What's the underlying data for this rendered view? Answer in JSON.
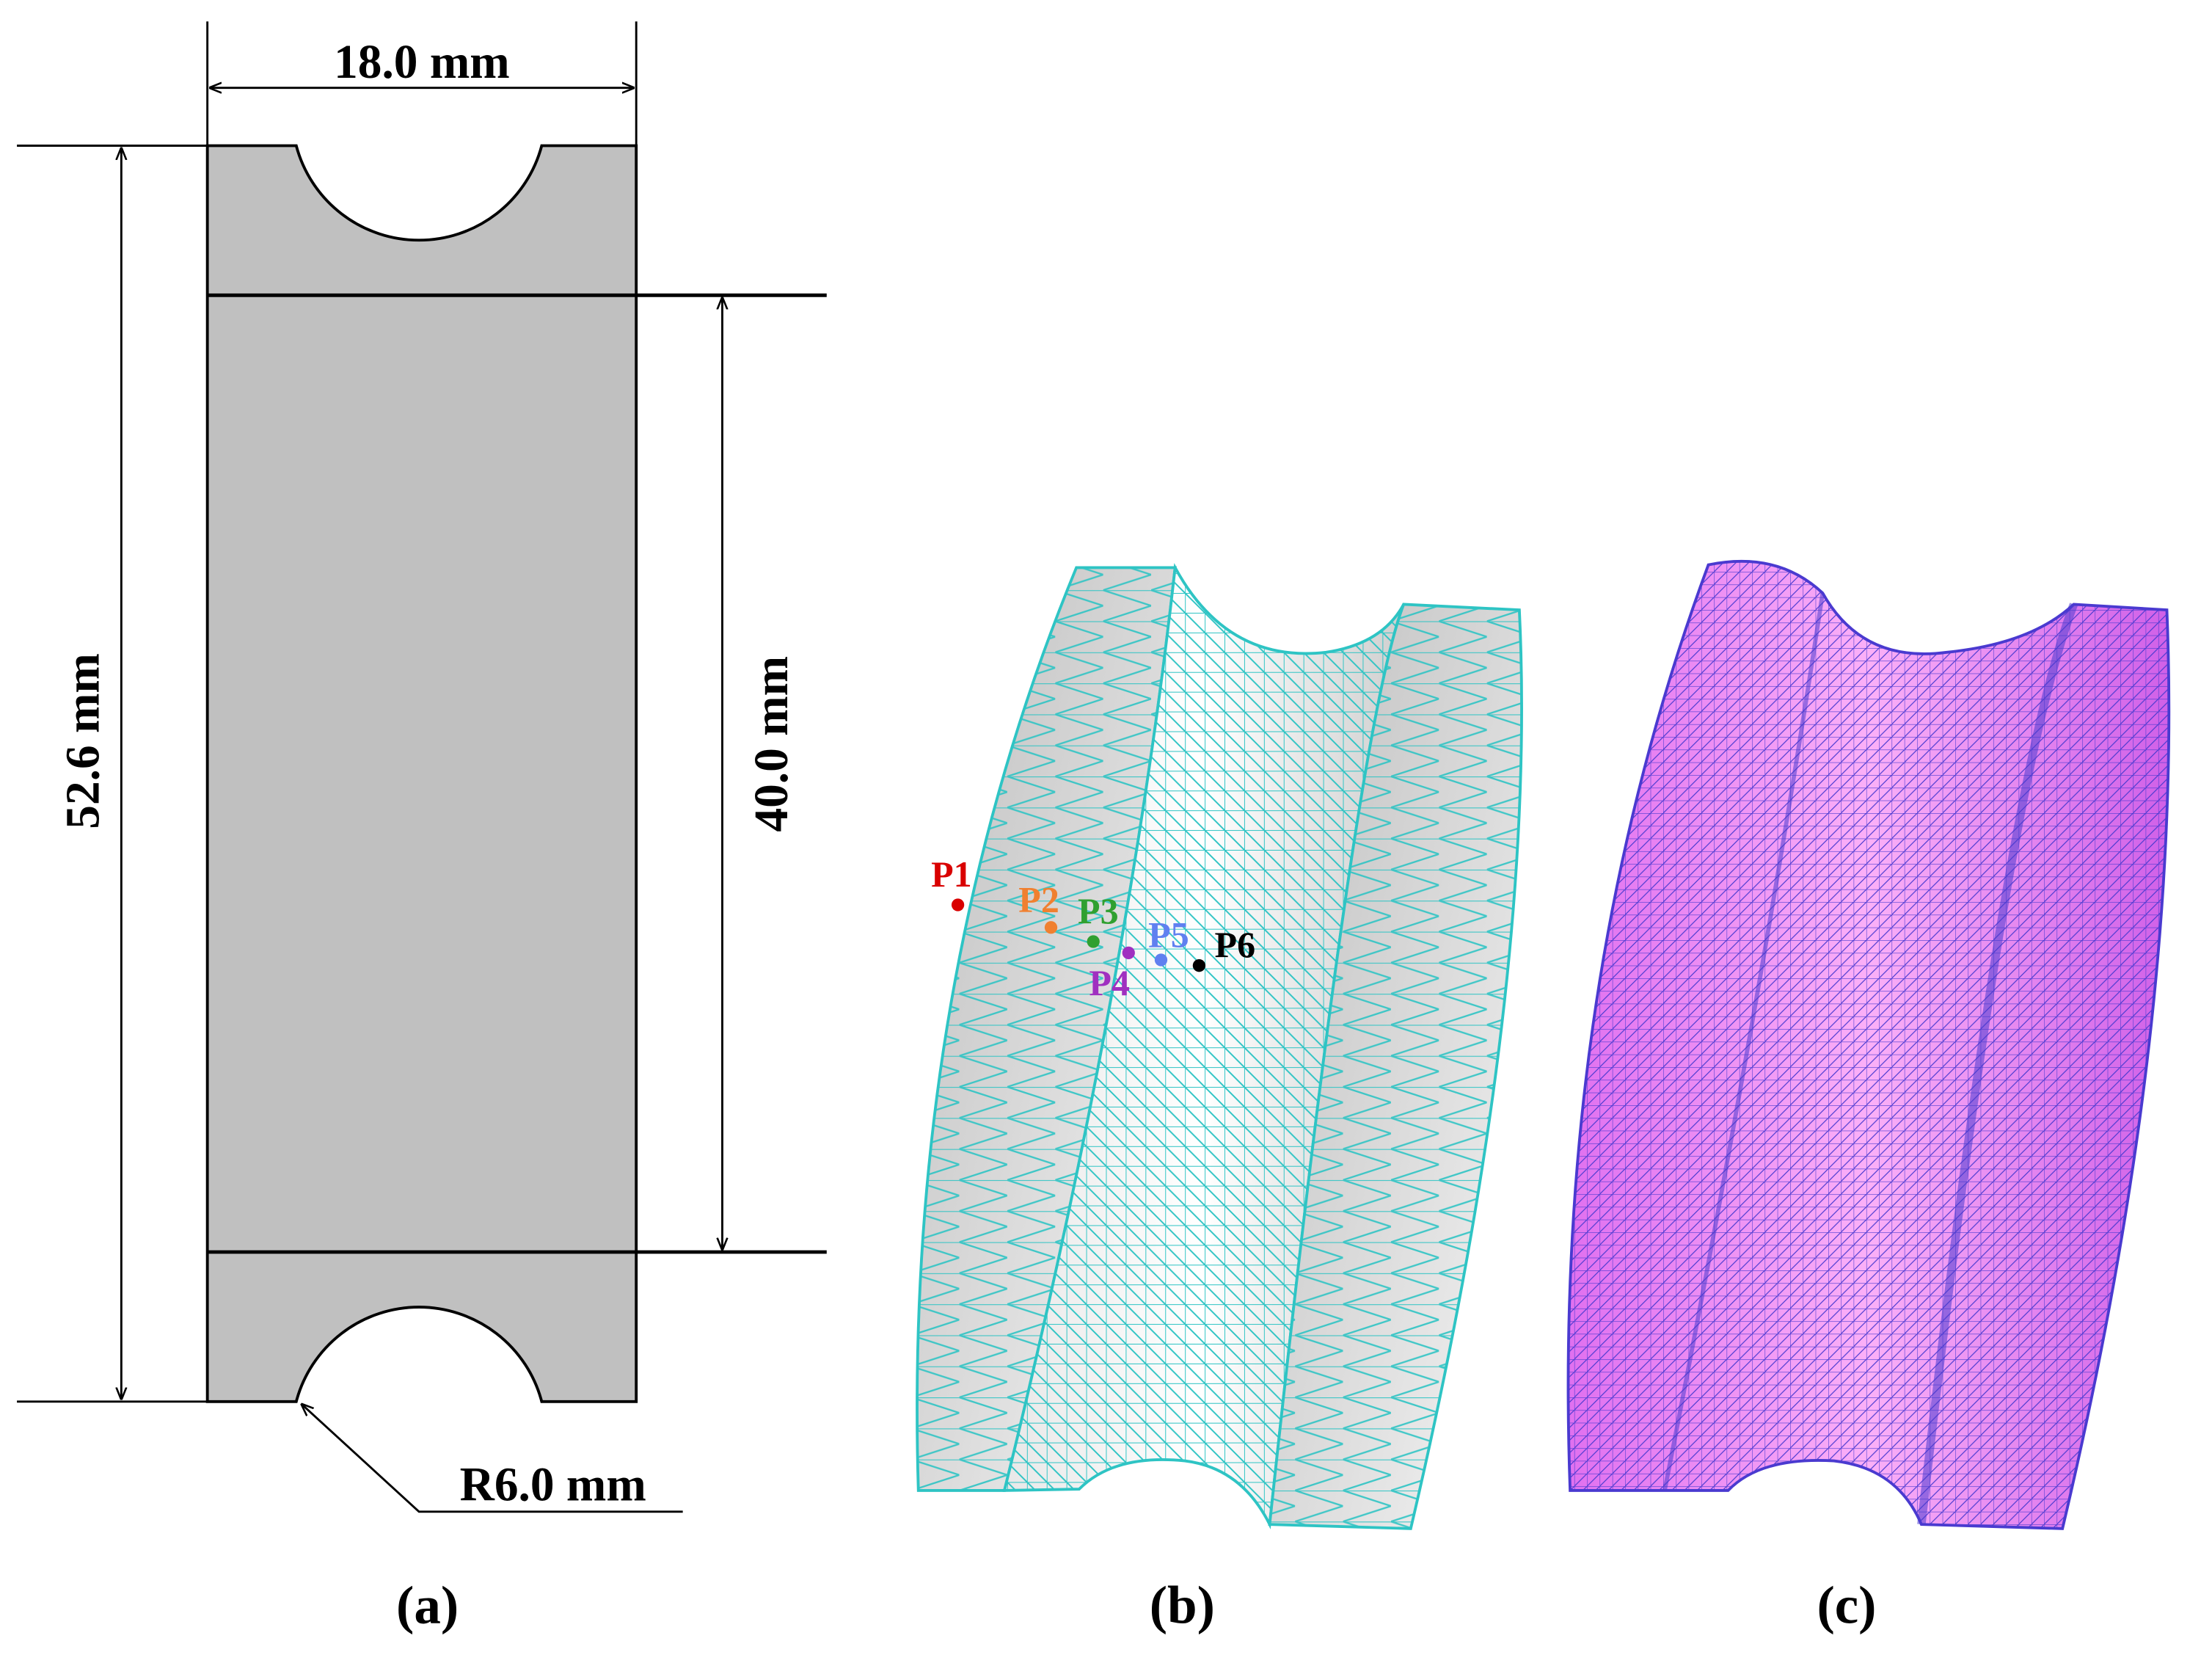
{
  "panel_a": {
    "caption": "(a)",
    "width_label": "18.0 mm",
    "total_height_label": "52.6 mm",
    "gauge_length_label": "40.0 mm",
    "radius_label": "R6.0 mm"
  },
  "panel_b": {
    "caption": "(b)",
    "points": [
      {
        "label": "P1",
        "color": "#d90000"
      },
      {
        "label": "P2",
        "color": "#f08030"
      },
      {
        "label": "P3",
        "color": "#30a030"
      },
      {
        "label": "P4",
        "color": "#a030c0"
      },
      {
        "label": "P5",
        "color": "#6080f0"
      },
      {
        "label": "P6",
        "color": "#000000"
      }
    ],
    "mesh_color": "#2ec4c4"
  },
  "panel_c": {
    "caption": "(c)",
    "fill_color": "#f07ef0",
    "mesh_color": "#4a3ad0"
  }
}
